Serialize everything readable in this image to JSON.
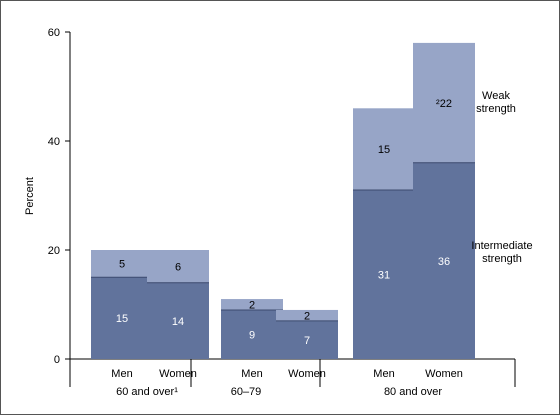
{
  "chart_data": {
    "type": "bar",
    "stacked": true,
    "ylabel": "Percent",
    "ylim": [
      0,
      60
    ],
    "yticks": [
      "0",
      "20",
      "40",
      "60"
    ],
    "grid": false,
    "groups": [
      {
        "label": "60 and over¹",
        "bars": [
          {
            "category": "Men",
            "intermediate": 15,
            "weak": 5,
            "intermediate_label": "15",
            "weak_label": "5"
          },
          {
            "category": "Women",
            "intermediate": 14,
            "weak": 6,
            "intermediate_label": "14",
            "weak_label": "6"
          }
        ]
      },
      {
        "label": "60–79",
        "bars": [
          {
            "category": "Men",
            "intermediate": 9,
            "weak": 2,
            "intermediate_label": "9",
            "weak_label": "2"
          },
          {
            "category": "Women",
            "intermediate": 7,
            "weak": 2,
            "intermediate_label": "7",
            "weak_label": "2"
          }
        ]
      },
      {
        "label": "80 and over",
        "bars": [
          {
            "category": "Men",
            "intermediate": 31,
            "weak": 15,
            "intermediate_label": "31",
            "weak_label": "15"
          },
          {
            "category": "Women",
            "intermediate": 36,
            "weak": 22,
            "intermediate_label": "36",
            "weak_label": "²22"
          }
        ]
      }
    ],
    "series": [
      {
        "key": "intermediate",
        "name": "Intermediate strength",
        "name_lines": [
          "Intermediate",
          "strength"
        ],
        "color": "#61739c"
      },
      {
        "key": "weak",
        "name": "Weak strength",
        "name_lines": [
          "Weak",
          "strength"
        ],
        "color": "#97a5c7"
      }
    ],
    "legend_placement": "right"
  }
}
